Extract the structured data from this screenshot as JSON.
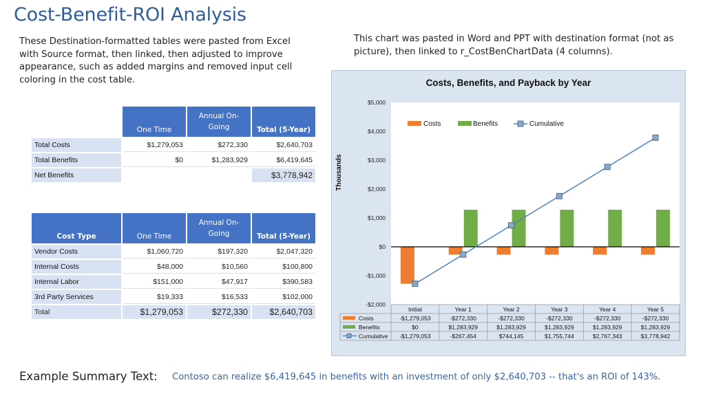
{
  "title": "Cost-Benefit-ROI Analysis",
  "left_note": "These Destination-formatted tables were pasted from Excel with Source format, then linked, then adjusted to improve appearance, such as added margins and removed input cell coloring in the cost table.",
  "right_note": "This chart was pasted in Word and PPT with destination format (not as picture), then linked to r_CostBenChartData  (4 columns).",
  "summary_table": {
    "headers": [
      "One Time",
      "Annual On-Going",
      "Total (5-Year)"
    ],
    "rows": [
      {
        "label": "Total Costs",
        "one_time": "$1,279,053",
        "annual": "$272,330",
        "total": "$2,640,703"
      },
      {
        "label": "Total Benefits",
        "one_time": "$0",
        "annual": "$1,283,929",
        "total": "$6,419,645"
      }
    ],
    "net": {
      "label": "Net Benefits",
      "total": "$3,778,942"
    }
  },
  "cost_table": {
    "headers": [
      "Cost Type",
      "One Time",
      "Annual On-Going",
      "Total (5-Year)"
    ],
    "rows": [
      {
        "label": "Vendor Costs",
        "one_time": "$1,060,720",
        "annual": "$197,320",
        "total": "$2,047,320"
      },
      {
        "label": "Internal Costs",
        "one_time": "$48,000",
        "annual": "$10,560",
        "total": "$100,800"
      },
      {
        "label": "Internal Labor",
        "one_time": "$151,000",
        "annual": "$47,917",
        "total": "$390,583"
      },
      {
        "label": "3rd Party Services",
        "one_time": "$19,333",
        "annual": "$16,533",
        "total": "$102,000"
      }
    ],
    "total": {
      "label": "Total",
      "one_time": "$1,279,053",
      "annual": "$272,330",
      "total": "$2,640,703"
    }
  },
  "chart_data": {
    "type": "bar",
    "title": "Costs, Benefits, and Payback by Year",
    "ylabel": "Thousands",
    "ylim": [
      -2000,
      5000
    ],
    "yticks": [
      5000,
      4000,
      3000,
      2000,
      1000,
      0,
      -1000,
      -2000
    ],
    "ytick_labels": [
      "$5,000",
      "$4,000",
      "$3,000",
      "$2,000",
      "$1,000",
      "$0",
      "-$1,000",
      "-$2,000"
    ],
    "categories": [
      "Initial",
      "Year 1",
      "Year 2",
      "Year 3",
      "Year 4",
      "Year 5"
    ],
    "legend_position": "top-right",
    "series": [
      {
        "name": "Costs",
        "kind": "bar",
        "color": "#ed7d31",
        "values": [
          -1279.053,
          -272.33,
          -272.33,
          -272.33,
          -272.33,
          -272.33
        ],
        "labels": [
          "-$1,279,053",
          "-$272,330",
          "-$272,330",
          "-$272,330",
          "-$272,330",
          "-$272,330"
        ]
      },
      {
        "name": "Benefits",
        "kind": "bar",
        "color": "#70ad47",
        "values": [
          0,
          1283.929,
          1283.929,
          1283.929,
          1283.929,
          1283.929
        ],
        "labels": [
          "$0",
          "$1,283,929",
          "$1,283,929",
          "$1,283,929",
          "$1,283,929",
          "$1,283,929"
        ]
      },
      {
        "name": "Cumulative",
        "kind": "line",
        "color": "#4f81bd",
        "values": [
          -1279.053,
          -267.454,
          744.145,
          1755.744,
          2767.343,
          3778.942
        ],
        "labels": [
          "-$1,279,053",
          "-$267,454",
          "$744,145",
          "$1,755,744",
          "$2,767,343",
          "$3,778,942"
        ]
      }
    ]
  },
  "summary_label": "Example Summary Text:",
  "summary_text": "Contoso can realize $6,419,645 in benefits with an investment of only $2,640,703 -- that's an ROI of 143%."
}
